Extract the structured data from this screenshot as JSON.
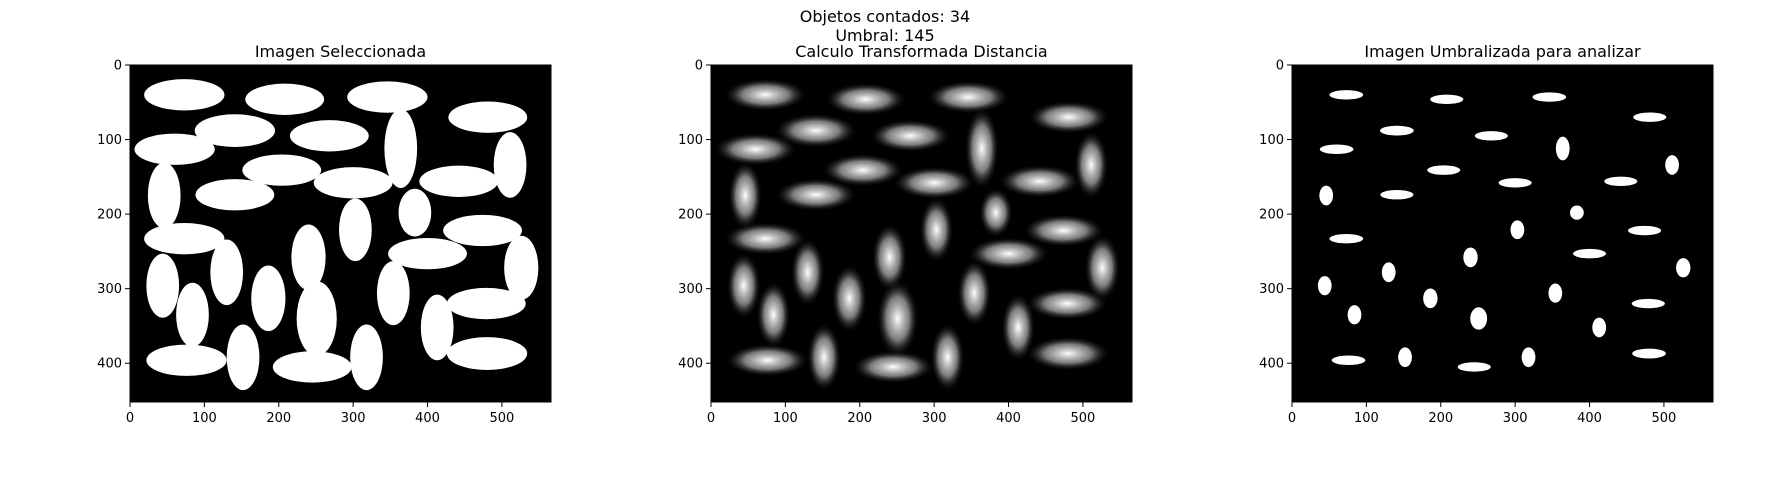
{
  "figure": {
    "suptitle_line1": "Objetos contados: 34",
    "suptitle_line2": "Umbral: 145"
  },
  "colors": {
    "background": "#000000",
    "foreground": "#ffffff",
    "axes": "#000000"
  },
  "chart_data": [
    {
      "type": "image",
      "title": "Imagen Seleccionada",
      "render": "binary",
      "xlim": [
        0,
        566
      ],
      "ylim": [
        452,
        0
      ],
      "xticks": [
        0,
        100,
        200,
        300,
        400,
        500
      ],
      "yticks": [
        0,
        100,
        200,
        300,
        400
      ],
      "objects": [
        {
          "cx": 73,
          "cy": 40,
          "rx": 54,
          "ry": 21
        },
        {
          "cx": 208,
          "cy": 46,
          "rx": 53,
          "ry": 21
        },
        {
          "cx": 346,
          "cy": 43,
          "rx": 54,
          "ry": 21
        },
        {
          "cx": 481,
          "cy": 70,
          "rx": 53,
          "ry": 21
        },
        {
          "cx": 141,
          "cy": 88,
          "rx": 54,
          "ry": 22
        },
        {
          "cx": 268,
          "cy": 95,
          "rx": 53,
          "ry": 21
        },
        {
          "cx": 60,
          "cy": 113,
          "rx": 54,
          "ry": 21
        },
        {
          "cx": 364,
          "cy": 112,
          "rx": 22,
          "ry": 53
        },
        {
          "cx": 511,
          "cy": 134,
          "rx": 22,
          "ry": 44
        },
        {
          "cx": 204,
          "cy": 141,
          "rx": 53,
          "ry": 21
        },
        {
          "cx": 300,
          "cy": 158,
          "rx": 53,
          "ry": 21
        },
        {
          "cx": 442,
          "cy": 156,
          "rx": 53,
          "ry": 21
        },
        {
          "cx": 46,
          "cy": 175,
          "rx": 22,
          "ry": 44
        },
        {
          "cx": 141,
          "cy": 174,
          "rx": 53,
          "ry": 21
        },
        {
          "cx": 383,
          "cy": 198,
          "rx": 22,
          "ry": 32
        },
        {
          "cx": 303,
          "cy": 221,
          "rx": 22,
          "ry": 42
        },
        {
          "cx": 474,
          "cy": 222,
          "rx": 53,
          "ry": 21
        },
        {
          "cx": 73,
          "cy": 233,
          "rx": 54,
          "ry": 21
        },
        {
          "cx": 400,
          "cy": 253,
          "rx": 53,
          "ry": 21
        },
        {
          "cx": 240,
          "cy": 258,
          "rx": 23,
          "ry": 44
        },
        {
          "cx": 526,
          "cy": 272,
          "rx": 23,
          "ry": 43
        },
        {
          "cx": 44,
          "cy": 296,
          "rx": 22,
          "ry": 43
        },
        {
          "cx": 130,
          "cy": 278,
          "rx": 22,
          "ry": 44
        },
        {
          "cx": 354,
          "cy": 306,
          "rx": 22,
          "ry": 43
        },
        {
          "cx": 186,
          "cy": 313,
          "rx": 23,
          "ry": 44
        },
        {
          "cx": 479,
          "cy": 320,
          "rx": 53,
          "ry": 21
        },
        {
          "cx": 84,
          "cy": 335,
          "rx": 22,
          "ry": 43
        },
        {
          "cx": 251,
          "cy": 340,
          "rx": 27,
          "ry": 50
        },
        {
          "cx": 413,
          "cy": 352,
          "rx": 22,
          "ry": 44
        },
        {
          "cx": 76,
          "cy": 396,
          "rx": 54,
          "ry": 21
        },
        {
          "cx": 152,
          "cy": 392,
          "rx": 22,
          "ry": 44
        },
        {
          "cx": 245,
          "cy": 405,
          "rx": 53,
          "ry": 21
        },
        {
          "cx": 318,
          "cy": 392,
          "rx": 22,
          "ry": 44
        },
        {
          "cx": 480,
          "cy": 387,
          "rx": 54,
          "ry": 22
        }
      ]
    },
    {
      "type": "image",
      "title": "Calculo Transformada Distancia",
      "render": "distance",
      "xlim": [
        0,
        566
      ],
      "ylim": [
        452,
        0
      ],
      "xticks": [
        0,
        100,
        200,
        300,
        400,
        500
      ],
      "yticks": [
        0,
        100,
        200,
        300,
        400
      ]
    },
    {
      "type": "image",
      "title": "Imagen Umbralizada para analizar",
      "render": "threshold",
      "xlim": [
        0,
        566
      ],
      "ylim": [
        452,
        0
      ],
      "xticks": [
        0,
        100,
        200,
        300,
        400,
        500
      ],
      "yticks": [
        0,
        100,
        200,
        300,
        400
      ]
    }
  ]
}
